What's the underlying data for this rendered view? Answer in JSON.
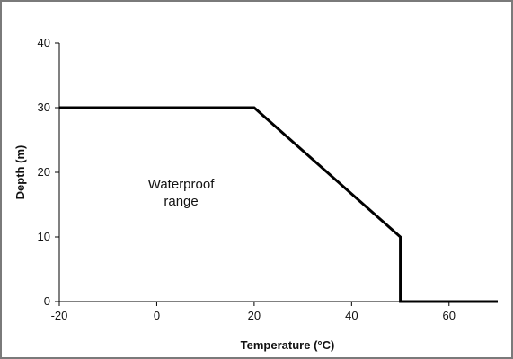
{
  "chart_data": {
    "type": "line",
    "xlabel": "Temperature (°C)",
    "ylabel": "Depth (m)",
    "xlim": [
      -20,
      70
    ],
    "ylim": [
      0,
      40
    ],
    "xticks": [
      -20,
      0,
      20,
      40,
      60
    ],
    "yticks": [
      0,
      10,
      20,
      30,
      40
    ],
    "grid": false,
    "series": [
      {
        "x": [
          -20,
          20,
          50,
          50,
          70
        ],
        "y": [
          30,
          30,
          10,
          0,
          0
        ],
        "color": "#000000"
      }
    ],
    "annotations": [
      {
        "lines": [
          "Waterproof",
          "range"
        ],
        "x": 5,
        "y": 17.5
      }
    ]
  }
}
